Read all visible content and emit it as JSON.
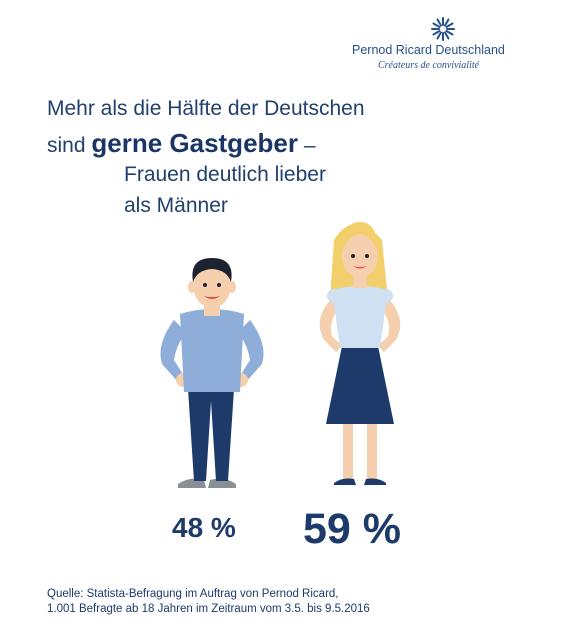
{
  "brand": {
    "name": "Pernod Ricard Deutschland",
    "tagline": "Créateurs de convivialité",
    "logo_icon": "sunburst-logo-icon"
  },
  "headline": {
    "line1": "Mehr als die Hälfte der Deutschen",
    "line2_prefix": "sind ",
    "line2_bold": "gerne Gastgeber",
    "line2_suffix": " –",
    "line3": "Frauen deutlich lieber",
    "line4": "als Männer"
  },
  "stats": {
    "men_percent": "48 %",
    "women_percent": "59 %"
  },
  "source": {
    "line1": "Quelle: Statista-Befragung im Auftrag von Pernod Ricard,",
    "line2": "1.001 Befragte ab 18 Jahren im Zeitraum vom 3.5. bis 9.5.2016"
  },
  "colors": {
    "navy": "#1d3a6b",
    "shirt_blue": "#8eadd8",
    "blouse_blue": "#cfe0f3",
    "skin": "#f6d0ae",
    "hair_blonde": "#f2cf6b"
  }
}
